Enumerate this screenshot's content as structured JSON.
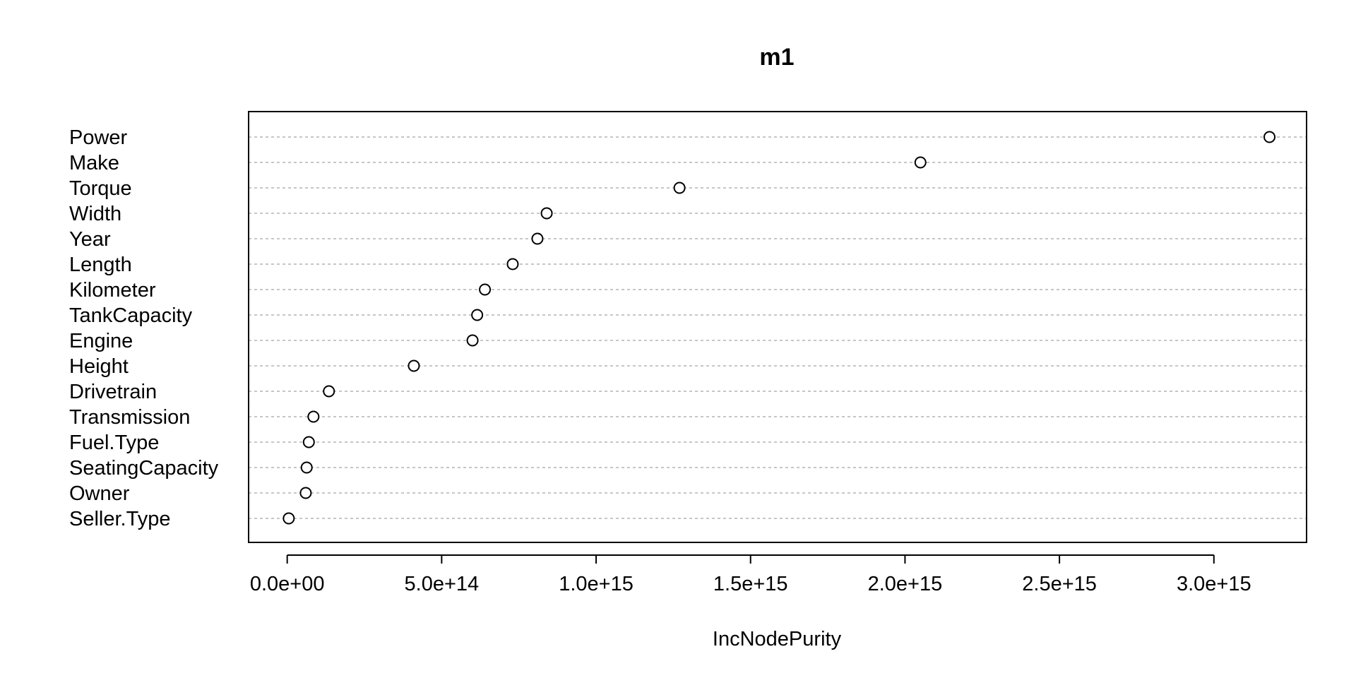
{
  "chart_data": {
    "type": "scatter",
    "title": "m1",
    "xlabel": "IncNodePurity",
    "ylabel": "",
    "xlim": [
      -125000000000000.0,
      3300000000000000.0
    ],
    "grid": true,
    "x_ticks": [
      0,
      500000000000000.0,
      1000000000000000.0,
      1500000000000000.0,
      2000000000000000.0,
      2500000000000000.0,
      3000000000000000.0
    ],
    "x_tick_labels": [
      "0.0e+00",
      "5.0e+14",
      "1.0e+15",
      "1.5e+15",
      "2.0e+15",
      "2.5e+15",
      "3.0e+15"
    ],
    "categories": [
      "Power",
      "Make",
      "Torque",
      "Width",
      "Year",
      "Length",
      "Kilometer",
      "TankCapacity",
      "Engine",
      "Height",
      "Drivetrain",
      "Transmission",
      "Fuel.Type",
      "SeatingCapacity",
      "Owner",
      "Seller.Type"
    ],
    "values": [
      3180000000000000.0,
      2050000000000000.0,
      1270000000000000.0,
      840000000000000.0,
      810000000000000.0,
      730000000000000.0,
      640000000000000.0,
      615000000000000.0,
      600000000000000.0,
      410000000000000.0,
      135000000000000.0,
      85000000000000.0,
      70000000000000.0,
      63000000000000.0,
      60000000000000.0,
      5000000000000.0
    ]
  }
}
